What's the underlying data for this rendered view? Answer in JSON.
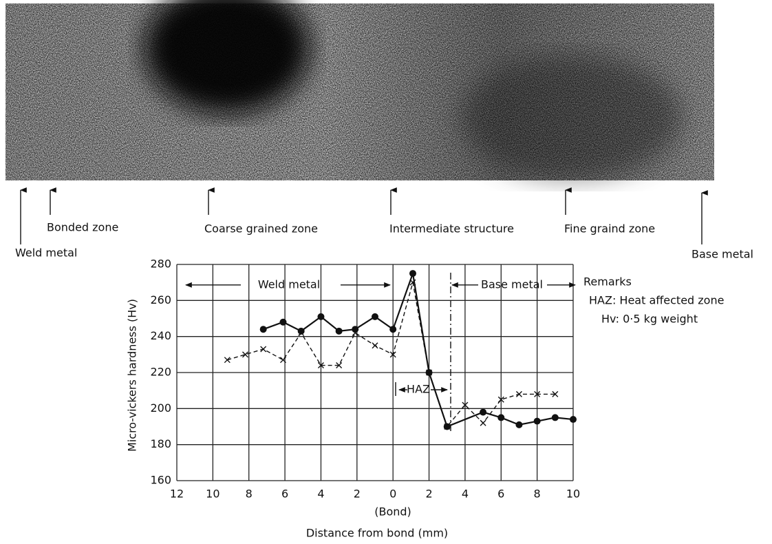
{
  "micrograph_labels": [
    "Weld metal",
    "Bonded zone",
    "Coarse grained zone",
    "Intermediate structure",
    "Fine graind zone",
    "Base metal"
  ],
  "chart_data": {
    "type": "line",
    "ylabel": "Micro-vickers hardness  (Hv)",
    "xlabel": "Distance from bond   (mm)",
    "xlim": [
      -12,
      10
    ],
    "ylim": [
      160,
      280
    ],
    "xticks": [
      {
        "value": -12,
        "label": "12"
      },
      {
        "value": -10,
        "label": "10"
      },
      {
        "value": -8,
        "label": "8"
      },
      {
        "value": -6,
        "label": "6"
      },
      {
        "value": -4,
        "label": "4"
      },
      {
        "value": -2,
        "label": "2"
      },
      0,
      2,
      4,
      6,
      8,
      10
    ],
    "yticks": [
      160,
      180,
      200,
      220,
      240,
      260,
      280
    ],
    "grid": true,
    "bond_label": "(Bond)",
    "weld_metal_label": "Weld metal",
    "base_metal_label": "Base metal",
    "haz_label": "HAZ",
    "remarks": [
      "Remarks",
      "HAZ: Heat affected zone",
      "Hv: 0·5 kg weight"
    ],
    "series": [
      {
        "color": "#111111",
        "marker": "circle",
        "linestyle": "solid",
        "x": [
          -7.2,
          -6.1,
          -5.1,
          -4.0,
          -3.0,
          -2.1,
          -1.0,
          0,
          1.1,
          2.0,
          3.0,
          5.0,
          6.0,
          7.0,
          8.0,
          9.0,
          10.0
        ],
        "values": [
          244,
          248,
          243,
          251,
          243,
          244,
          251,
          244,
          275,
          220,
          190,
          198,
          195,
          191,
          193,
          195,
          194
        ]
      },
      {
        "color": "#111111",
        "marker": "x",
        "linestyle": "dashed",
        "x": [
          -9.2,
          -8.2,
          -7.2,
          -6.1,
          -5.1,
          -4.0,
          -3.0,
          -2.1,
          -1.0,
          0,
          1.1,
          2.0,
          3.0,
          4.0,
          5.0,
          6.0,
          7.0,
          8.0,
          9.0
        ],
        "values": [
          227,
          230,
          233,
          227,
          242,
          224,
          224,
          242,
          235,
          230,
          270,
          220,
          190,
          202,
          192,
          205,
          208,
          208,
          208
        ]
      }
    ]
  }
}
